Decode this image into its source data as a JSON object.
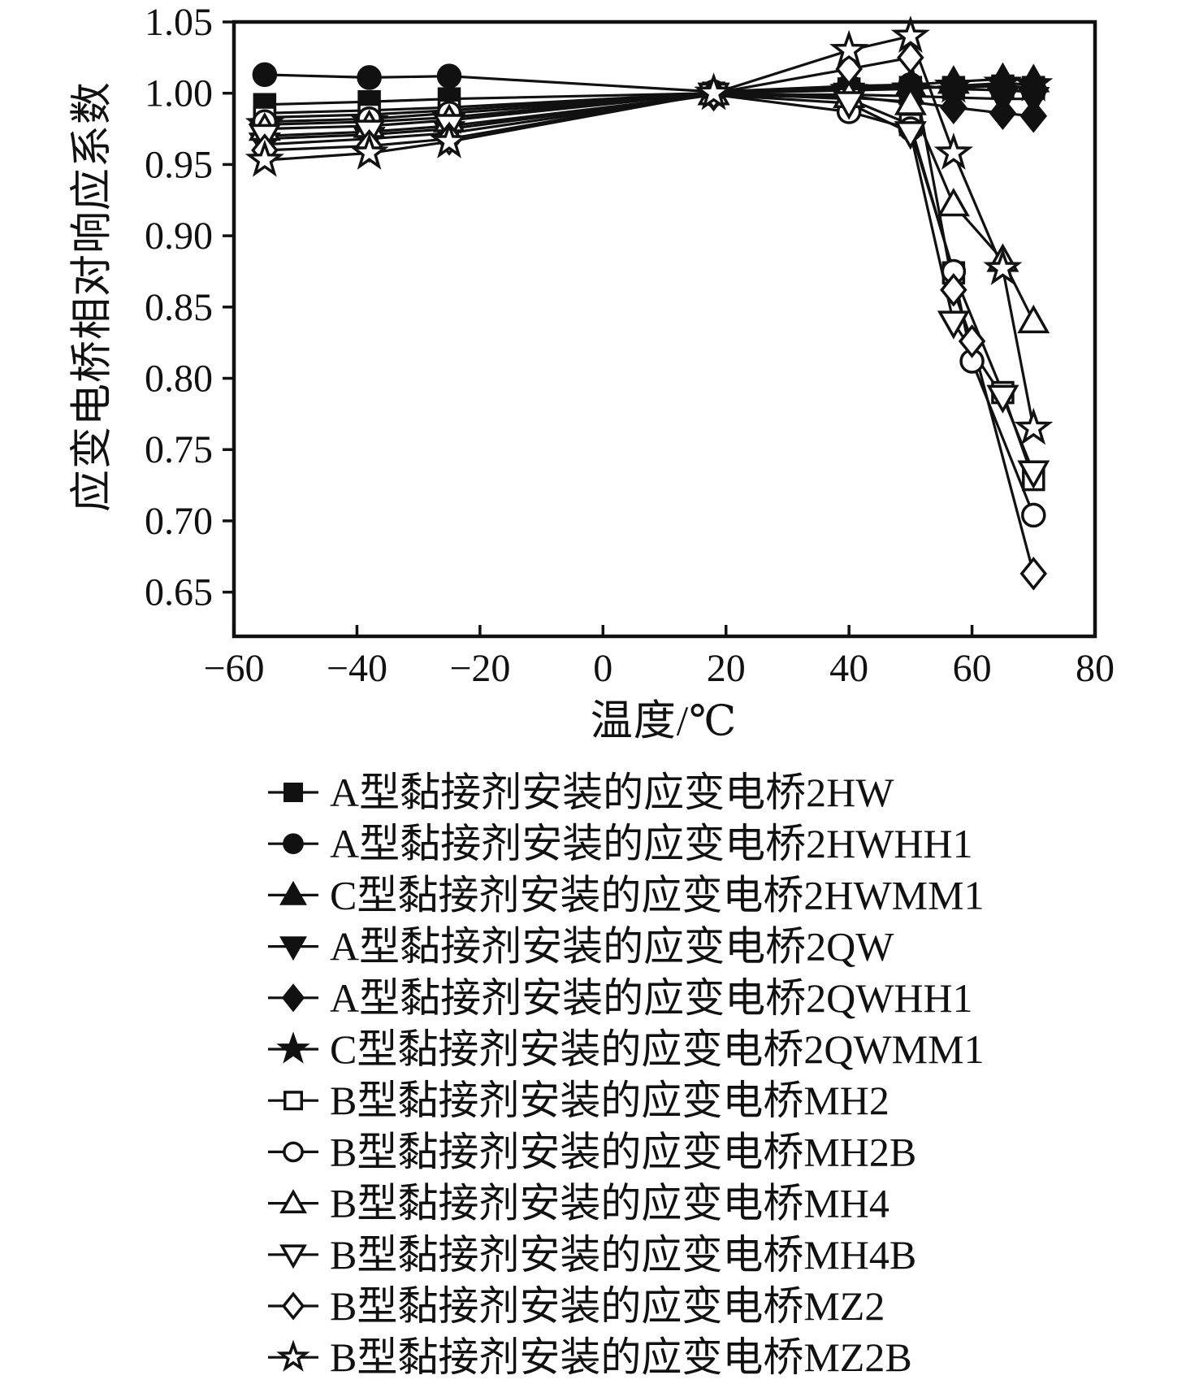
{
  "figure": {
    "background": "#ffffff",
    "line_color": "#111111"
  },
  "chart_data": {
    "type": "line",
    "title": "",
    "xlabel": "温度/℃",
    "ylabel": "应变电桥相对响应系数",
    "xlim": [
      -60,
      80
    ],
    "ylim": [
      0.619,
      1.05
    ],
    "xticks": [
      -60,
      -40,
      -20,
      0,
      20,
      40,
      60,
      80
    ],
    "yticks": [
      1.05,
      1.0,
      0.95,
      0.9,
      0.85,
      0.8,
      0.75,
      0.7,
      0.65
    ],
    "grid": false,
    "legend_position": "below-chart",
    "series": [
      {
        "name": "A型黏接剂安装的应变电桥2HW",
        "marker": "square",
        "filled": true,
        "points": [
          [
            -55,
            0.992
          ],
          [
            -38,
            0.994
          ],
          [
            -25,
            0.996
          ],
          [
            18,
            1.0
          ],
          [
            40,
            1.003
          ],
          [
            50,
            1.004
          ],
          [
            57,
            1.004
          ],
          [
            65,
            1.005
          ],
          [
            70,
            1.004
          ]
        ]
      },
      {
        "name": "A型黏接剂安装的应变电桥2HWHH1",
        "marker": "circle",
        "filled": true,
        "points": [
          [
            -55,
            1.013
          ],
          [
            -38,
            1.011
          ],
          [
            -25,
            1.012
          ],
          [
            18,
            1.001
          ],
          [
            40,
            1.005
          ],
          [
            50,
            1.006
          ],
          [
            57,
            1.003
          ],
          [
            65,
            1.002
          ],
          [
            70,
            1.001
          ]
        ]
      },
      {
        "name": "C型黏接剂安装的应变电桥2HWMM1",
        "marker": "triangle-up",
        "filled": true,
        "points": [
          [
            -55,
            0.986
          ],
          [
            -38,
            0.988
          ],
          [
            -25,
            0.99
          ],
          [
            18,
            1.0
          ],
          [
            40,
            1.004
          ],
          [
            50,
            1.006
          ],
          [
            57,
            1.008
          ],
          [
            65,
            1.01
          ],
          [
            70,
            1.009
          ]
        ]
      },
      {
        "name": "A型黏接剂安装的应变电桥2QW",
        "marker": "triangle-down",
        "filled": true,
        "points": [
          [
            -55,
            0.964
          ],
          [
            -38,
            0.968
          ],
          [
            -25,
            0.972
          ],
          [
            18,
            0.999
          ],
          [
            40,
            0.999
          ],
          [
            50,
            0.998
          ],
          [
            57,
            0.997
          ],
          [
            65,
            0.996
          ],
          [
            70,
            0.996
          ]
        ]
      },
      {
        "name": "A型黏接剂安装的应变电桥2QWHH1",
        "marker": "diamond",
        "filled": true,
        "points": [
          [
            -55,
            0.968
          ],
          [
            -38,
            0.971
          ],
          [
            -25,
            0.975
          ],
          [
            18,
            0.999
          ],
          [
            40,
            0.997
          ],
          [
            50,
            0.994
          ],
          [
            57,
            0.99
          ],
          [
            65,
            0.986
          ],
          [
            70,
            0.984
          ]
        ]
      },
      {
        "name": "C型黏接剂安装的应变电桥2QWMM1",
        "marker": "star",
        "filled": true,
        "points": [
          [
            -55,
            0.978
          ],
          [
            -38,
            0.98
          ],
          [
            -25,
            0.983
          ],
          [
            18,
            1.0
          ],
          [
            40,
            1.002
          ],
          [
            50,
            1.003
          ],
          [
            57,
            1.005
          ],
          [
            65,
            1.007
          ],
          [
            70,
            1.006
          ]
        ]
      },
      {
        "name": "B型黏接剂安装的应变电桥MH2",
        "marker": "square",
        "filled": false,
        "points": [
          [
            -55,
            0.983
          ],
          [
            -38,
            0.985
          ],
          [
            -25,
            0.988
          ],
          [
            18,
            1.0
          ],
          [
            40,
            0.996
          ],
          [
            50,
            0.978
          ],
          [
            57,
            0.874
          ],
          [
            65,
            0.79
          ],
          [
            70,
            0.729
          ]
        ]
      },
      {
        "name": "B型黏接剂安装的应变电桥MH2B",
        "marker": "circle",
        "filled": false,
        "points": [
          [
            -55,
            0.98
          ],
          [
            -38,
            0.982
          ],
          [
            -25,
            0.986
          ],
          [
            18,
            0.999
          ],
          [
            40,
            0.987
          ],
          [
            50,
            0.975
          ],
          [
            57,
            0.875
          ],
          [
            60,
            0.812
          ],
          [
            70,
            0.704
          ]
        ]
      },
      {
        "name": "B型黏接剂安装的应变电桥MH4",
        "marker": "triangle-up",
        "filled": false,
        "points": [
          [
            -55,
            0.975
          ],
          [
            -38,
            0.977
          ],
          [
            -25,
            0.981
          ],
          [
            18,
            1.0
          ],
          [
            40,
            0.998
          ],
          [
            50,
            0.993
          ],
          [
            57,
            0.922
          ],
          [
            65,
            0.883
          ],
          [
            70,
            0.84
          ]
        ]
      },
      {
        "name": "B型黏接剂安装的应变电桥MH4B",
        "marker": "triangle-down",
        "filled": false,
        "points": [
          [
            -55,
            0.97
          ],
          [
            -38,
            0.973
          ],
          [
            -25,
            0.977
          ],
          [
            18,
            0.999
          ],
          [
            40,
            0.993
          ],
          [
            50,
            0.972
          ],
          [
            57,
            0.839
          ],
          [
            65,
            0.787
          ],
          [
            70,
            0.734
          ]
        ]
      },
      {
        "name": "B型黏接剂安装的应变电桥MZ2",
        "marker": "diamond",
        "filled": false,
        "points": [
          [
            -55,
            0.96
          ],
          [
            -38,
            0.963
          ],
          [
            -25,
            0.968
          ],
          [
            18,
            1.0
          ],
          [
            40,
            1.017
          ],
          [
            50,
            1.025
          ],
          [
            57,
            0.862
          ],
          [
            60,
            0.826
          ],
          [
            70,
            0.663
          ]
        ]
      },
      {
        "name": "B型黏接剂安装的应变电桥MZ2B",
        "marker": "star",
        "filled": false,
        "points": [
          [
            -55,
            0.953
          ],
          [
            -38,
            0.958
          ],
          [
            -25,
            0.966
          ],
          [
            18,
            1.0
          ],
          [
            40,
            1.03
          ],
          [
            50,
            1.04
          ],
          [
            57,
            0.958
          ],
          [
            65,
            0.877
          ],
          [
            70,
            0.765
          ]
        ]
      }
    ]
  }
}
